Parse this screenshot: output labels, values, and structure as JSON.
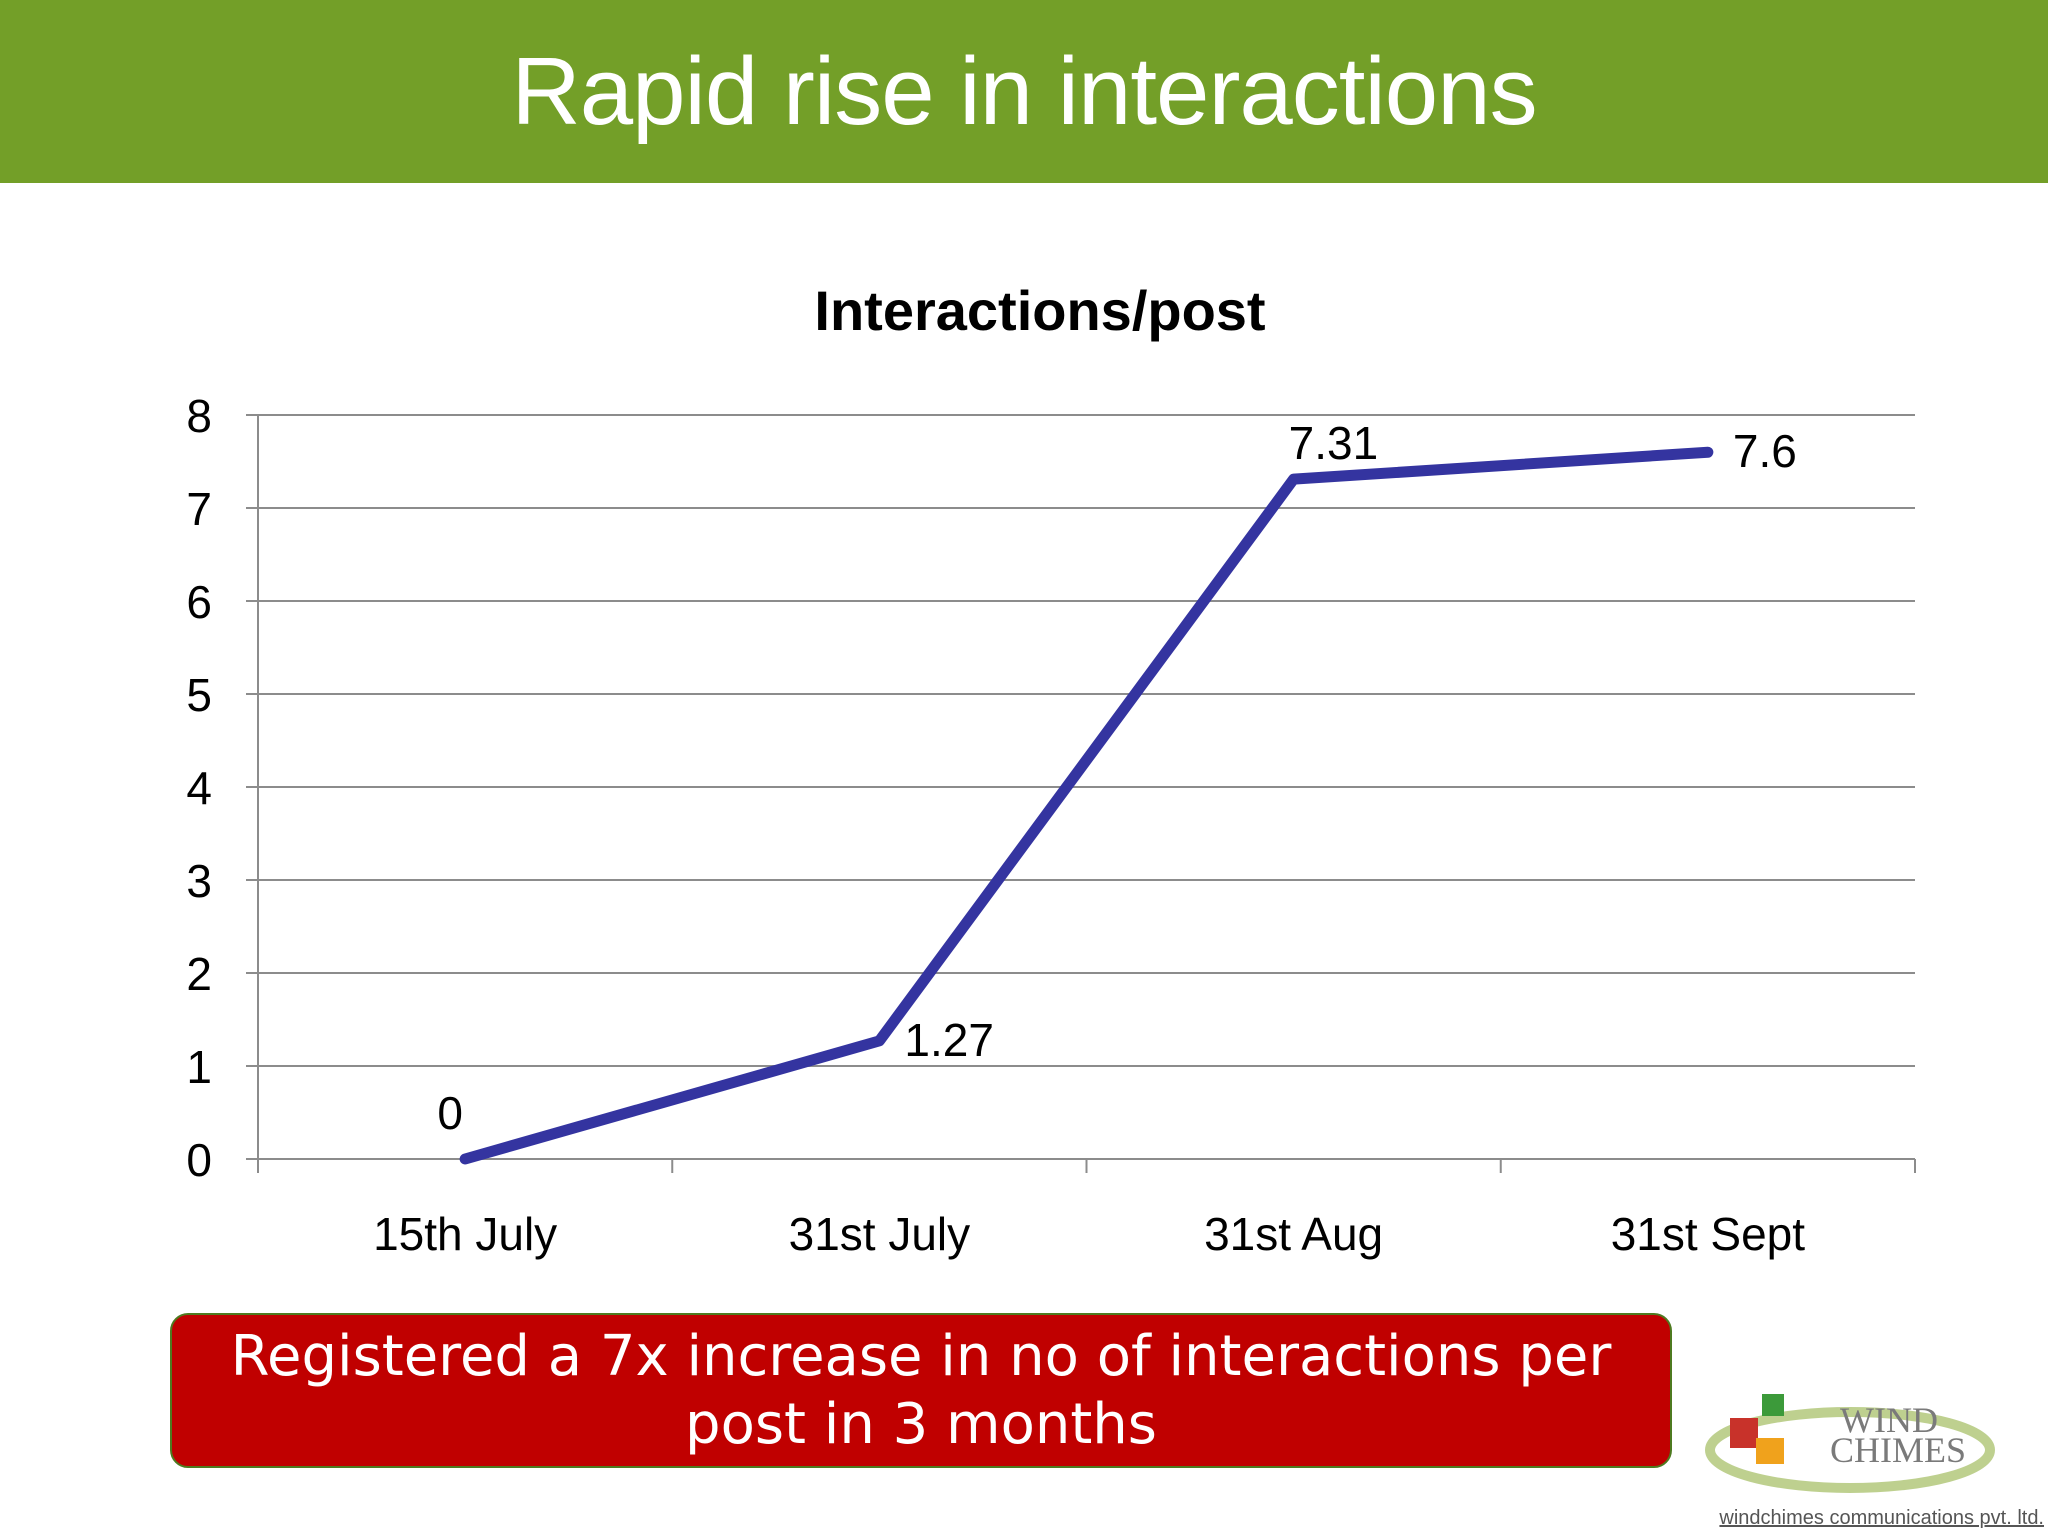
{
  "slide": {
    "title": "Rapid rise in interactions",
    "callout": "Registered a 7x increase in no of interactions per post in 3 months",
    "footer": "windchimes communications pvt. ltd.",
    "logo_text_line1": "WIND",
    "logo_text_line2": "CHIMES",
    "colors": {
      "banner": "#739f28",
      "callout": "#c00000",
      "series": "#3434a0"
    }
  },
  "chart_data": {
    "type": "line",
    "title": "Interactions/post",
    "xlabel": "",
    "ylabel": "",
    "categories": [
      "15th July",
      "31st July",
      "31st Aug",
      "31st Sept"
    ],
    "series": [
      {
        "name": "Interactions/post",
        "values": [
          0,
          1.27,
          7.31,
          7.6
        ],
        "labels": [
          "0",
          "1.27",
          "7.31",
          "7.6"
        ]
      }
    ],
    "ylim": [
      0,
      8
    ],
    "yticks": [
      0,
      1,
      2,
      3,
      4,
      5,
      6,
      7,
      8
    ],
    "grid": true,
    "legend": "none"
  }
}
